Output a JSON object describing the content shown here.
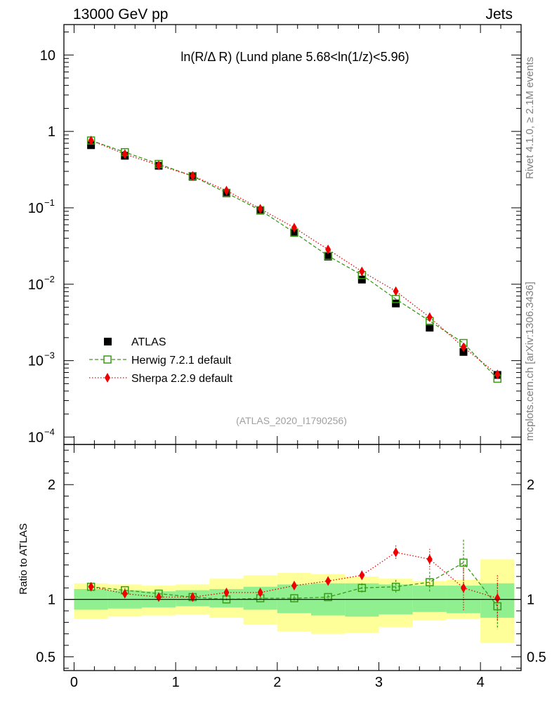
{
  "header": {
    "left": "13000 GeV pp",
    "right": "Jets"
  },
  "side_labels": {
    "rivet": "Rivet 4.1.0, ≥ 2.1M events",
    "mcplots": "mcplots.cern.ch [arXiv:1306.3436]"
  },
  "chart_data": [
    {
      "type": "scatter",
      "panel": "main",
      "title": "ln(R/Δ R) (Lund plane 5.68<ln(1/z)<5.96)",
      "watermark": "(ATLAS_2020_I1790256)",
      "yscale": "log",
      "ylim": [
        8e-05,
        25
      ],
      "xlim": [
        -0.1,
        4.4
      ],
      "y_ticks": [
        {
          "value": 10,
          "label": "10"
        },
        {
          "value": 1,
          "label": "1"
        },
        {
          "value": 0.1,
          "base": "10",
          "exp": "−1"
        },
        {
          "value": 0.01,
          "base": "10",
          "exp": "−2"
        },
        {
          "value": 0.001,
          "base": "10",
          "exp": "−3"
        },
        {
          "value": 0.0001,
          "base": "10",
          "exp": "−4"
        }
      ],
      "x": [
        0.167,
        0.5,
        0.833,
        1.167,
        1.5,
        1.833,
        2.167,
        2.5,
        2.833,
        3.167,
        3.5,
        3.833,
        4.167
      ],
      "series": [
        {
          "name": "ATLAS",
          "color": "#000000",
          "marker": "square-filled",
          "values": [
            0.66,
            0.48,
            0.355,
            0.255,
            0.155,
            0.092,
            0.047,
            0.023,
            0.0115,
            0.0056,
            0.0027,
            0.0013,
            0.00065
          ]
        },
        {
          "name": "Herwig 7.2.1 default",
          "color": "#3a9a16",
          "marker": "square-open",
          "line": "dashed",
          "values": [
            0.76,
            0.535,
            0.375,
            0.26,
            0.157,
            0.093,
            0.0475,
            0.0235,
            0.0132,
            0.0064,
            0.0033,
            0.0017,
            0.00058
          ]
        },
        {
          "name": "Sherpa 2.2.9 default",
          "color": "#ee0000",
          "marker": "diamond-filled",
          "line": "dotted",
          "values": [
            0.76,
            0.505,
            0.36,
            0.262,
            0.168,
            0.097,
            0.055,
            0.0285,
            0.0147,
            0.0081,
            0.0037,
            0.0015,
            0.00066
          ]
        }
      ]
    },
    {
      "type": "scatter",
      "panel": "ratio",
      "ylabel": "Ratio to ATLAS",
      "xlim": [
        -0.1,
        4.4
      ],
      "ylim": [
        0.38,
        2.35
      ],
      "y_ticks": [
        {
          "value": 2,
          "label": "2"
        },
        {
          "value": 1,
          "label": "1"
        },
        {
          "value": 0.5,
          "label": "0.5"
        }
      ],
      "x_ticks": [
        {
          "value": 0,
          "label": "0"
        },
        {
          "value": 1,
          "label": "1"
        },
        {
          "value": 2,
          "label": "2"
        },
        {
          "value": 3,
          "label": "3"
        },
        {
          "value": 4,
          "label": "4"
        }
      ],
      "bin_edges": [
        0,
        0.333,
        0.667,
        1.0,
        1.333,
        1.667,
        2.0,
        2.333,
        2.667,
        3.0,
        3.333,
        3.667,
        4.0,
        4.333
      ],
      "band_inner": {
        "name": "stat",
        "color": "#90f090",
        "lo": [
          0.91,
          0.92,
          0.93,
          0.94,
          0.93,
          0.91,
          0.88,
          0.86,
          0.85,
          0.87,
          0.89,
          0.88,
          0.84
        ],
        "hi": [
          1.09,
          1.08,
          1.07,
          1.08,
          1.09,
          1.11,
          1.13,
          1.14,
          1.14,
          1.13,
          1.12,
          1.12,
          1.14
        ]
      },
      "band_outer": {
        "name": "total",
        "color": "#ffff99",
        "lo": [
          0.83,
          0.85,
          0.86,
          0.87,
          0.84,
          0.78,
          0.72,
          0.7,
          0.71,
          0.76,
          0.82,
          0.83,
          0.62
        ],
        "hi": [
          1.14,
          1.13,
          1.12,
          1.13,
          1.18,
          1.21,
          1.23,
          1.22,
          1.2,
          1.18,
          1.16,
          1.17,
          1.35
        ]
      },
      "series": [
        {
          "name": "Herwig 7.2.1 default",
          "color": "#3a9a16",
          "marker": "square-open",
          "line": "dashed",
          "values": [
            1.11,
            1.08,
            1.05,
            1.02,
            1.0,
            1.01,
            1.01,
            1.02,
            1.1,
            1.11,
            1.15,
            1.32,
            0.94
          ],
          "err": [
            0.02,
            0.02,
            0.01,
            0.01,
            0.01,
            0.01,
            0.02,
            0.02,
            0.04,
            0.06,
            0.09,
            0.2,
            0.2
          ]
        },
        {
          "name": "Sherpa 2.2.9 default",
          "color": "#ee0000",
          "marker": "diamond-filled",
          "line": "dotted",
          "values": [
            1.11,
            1.05,
            1.02,
            1.02,
            1.06,
            1.06,
            1.12,
            1.16,
            1.21,
            1.41,
            1.35,
            1.1,
            1.01
          ],
          "err": [
            0.02,
            0.02,
            0.01,
            0.01,
            0.01,
            0.01,
            0.02,
            0.02,
            0.04,
            0.06,
            0.09,
            0.2,
            0.2
          ]
        }
      ]
    }
  ]
}
